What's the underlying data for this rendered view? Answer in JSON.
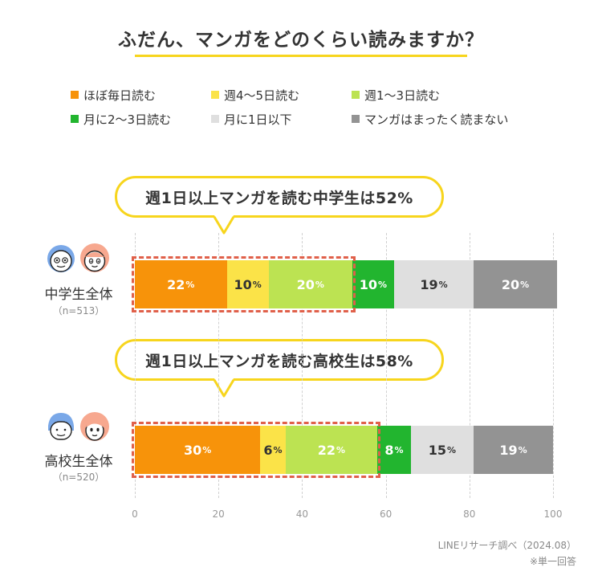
{
  "title": "ふだん、マンガをどのくらい読みますか？",
  "legend": [
    {
      "label": "ほぼ毎日読む",
      "color": "#f7930a"
    },
    {
      "label": "週4～5日読む",
      "color": "#fbe348"
    },
    {
      "label": "週1～3日読む",
      "color": "#bce352"
    },
    {
      "label": "月に2～3日読む",
      "color": "#22b52f"
    },
    {
      "label": "月に1日以下",
      "color": "#dfdfdf"
    },
    {
      "label": "マンガはまったく読まない",
      "color": "#939393"
    }
  ],
  "callouts": {
    "middle": "週1日以上マンガを読む中学生は52%",
    "high": "週1日以上マンガを読む高校生は58%"
  },
  "groups": {
    "middle": {
      "label": "中学生全体",
      "n": "（n=513）"
    },
    "high": {
      "label": "高校生全体",
      "n": "（n=520）"
    }
  },
  "source": "LINEリサーチ調べ（2024.08）",
  "note": "※単一回答",
  "chart_data": {
    "type": "bar",
    "orientation": "horizontal",
    "stacked": true,
    "title": "ふだん、マンガをどのくらい読みますか？",
    "categories": [
      "中学生全体",
      "高校生全体"
    ],
    "series": [
      {
        "name": "ほぼ毎日読む",
        "values": [
          22,
          30
        ],
        "color": "#f7930a"
      },
      {
        "name": "週4～5日読む",
        "values": [
          10,
          6
        ],
        "color": "#fbe348"
      },
      {
        "name": "週1～3日読む",
        "values": [
          20,
          22
        ],
        "color": "#bce352"
      },
      {
        "name": "月に2～3日読む",
        "values": [
          10,
          8
        ],
        "color": "#22b52f"
      },
      {
        "name": "月に1日以下",
        "values": [
          19,
          15
        ],
        "color": "#dfdfdf"
      },
      {
        "name": "マンガはまったく読まない",
        "values": [
          20,
          19
        ],
        "color": "#939393"
      }
    ],
    "xlim": [
      0,
      100
    ],
    "xticks": [
      "0",
      "20",
      "40",
      "60",
      "80",
      "100"
    ],
    "grid": true,
    "legend_position": "top"
  }
}
